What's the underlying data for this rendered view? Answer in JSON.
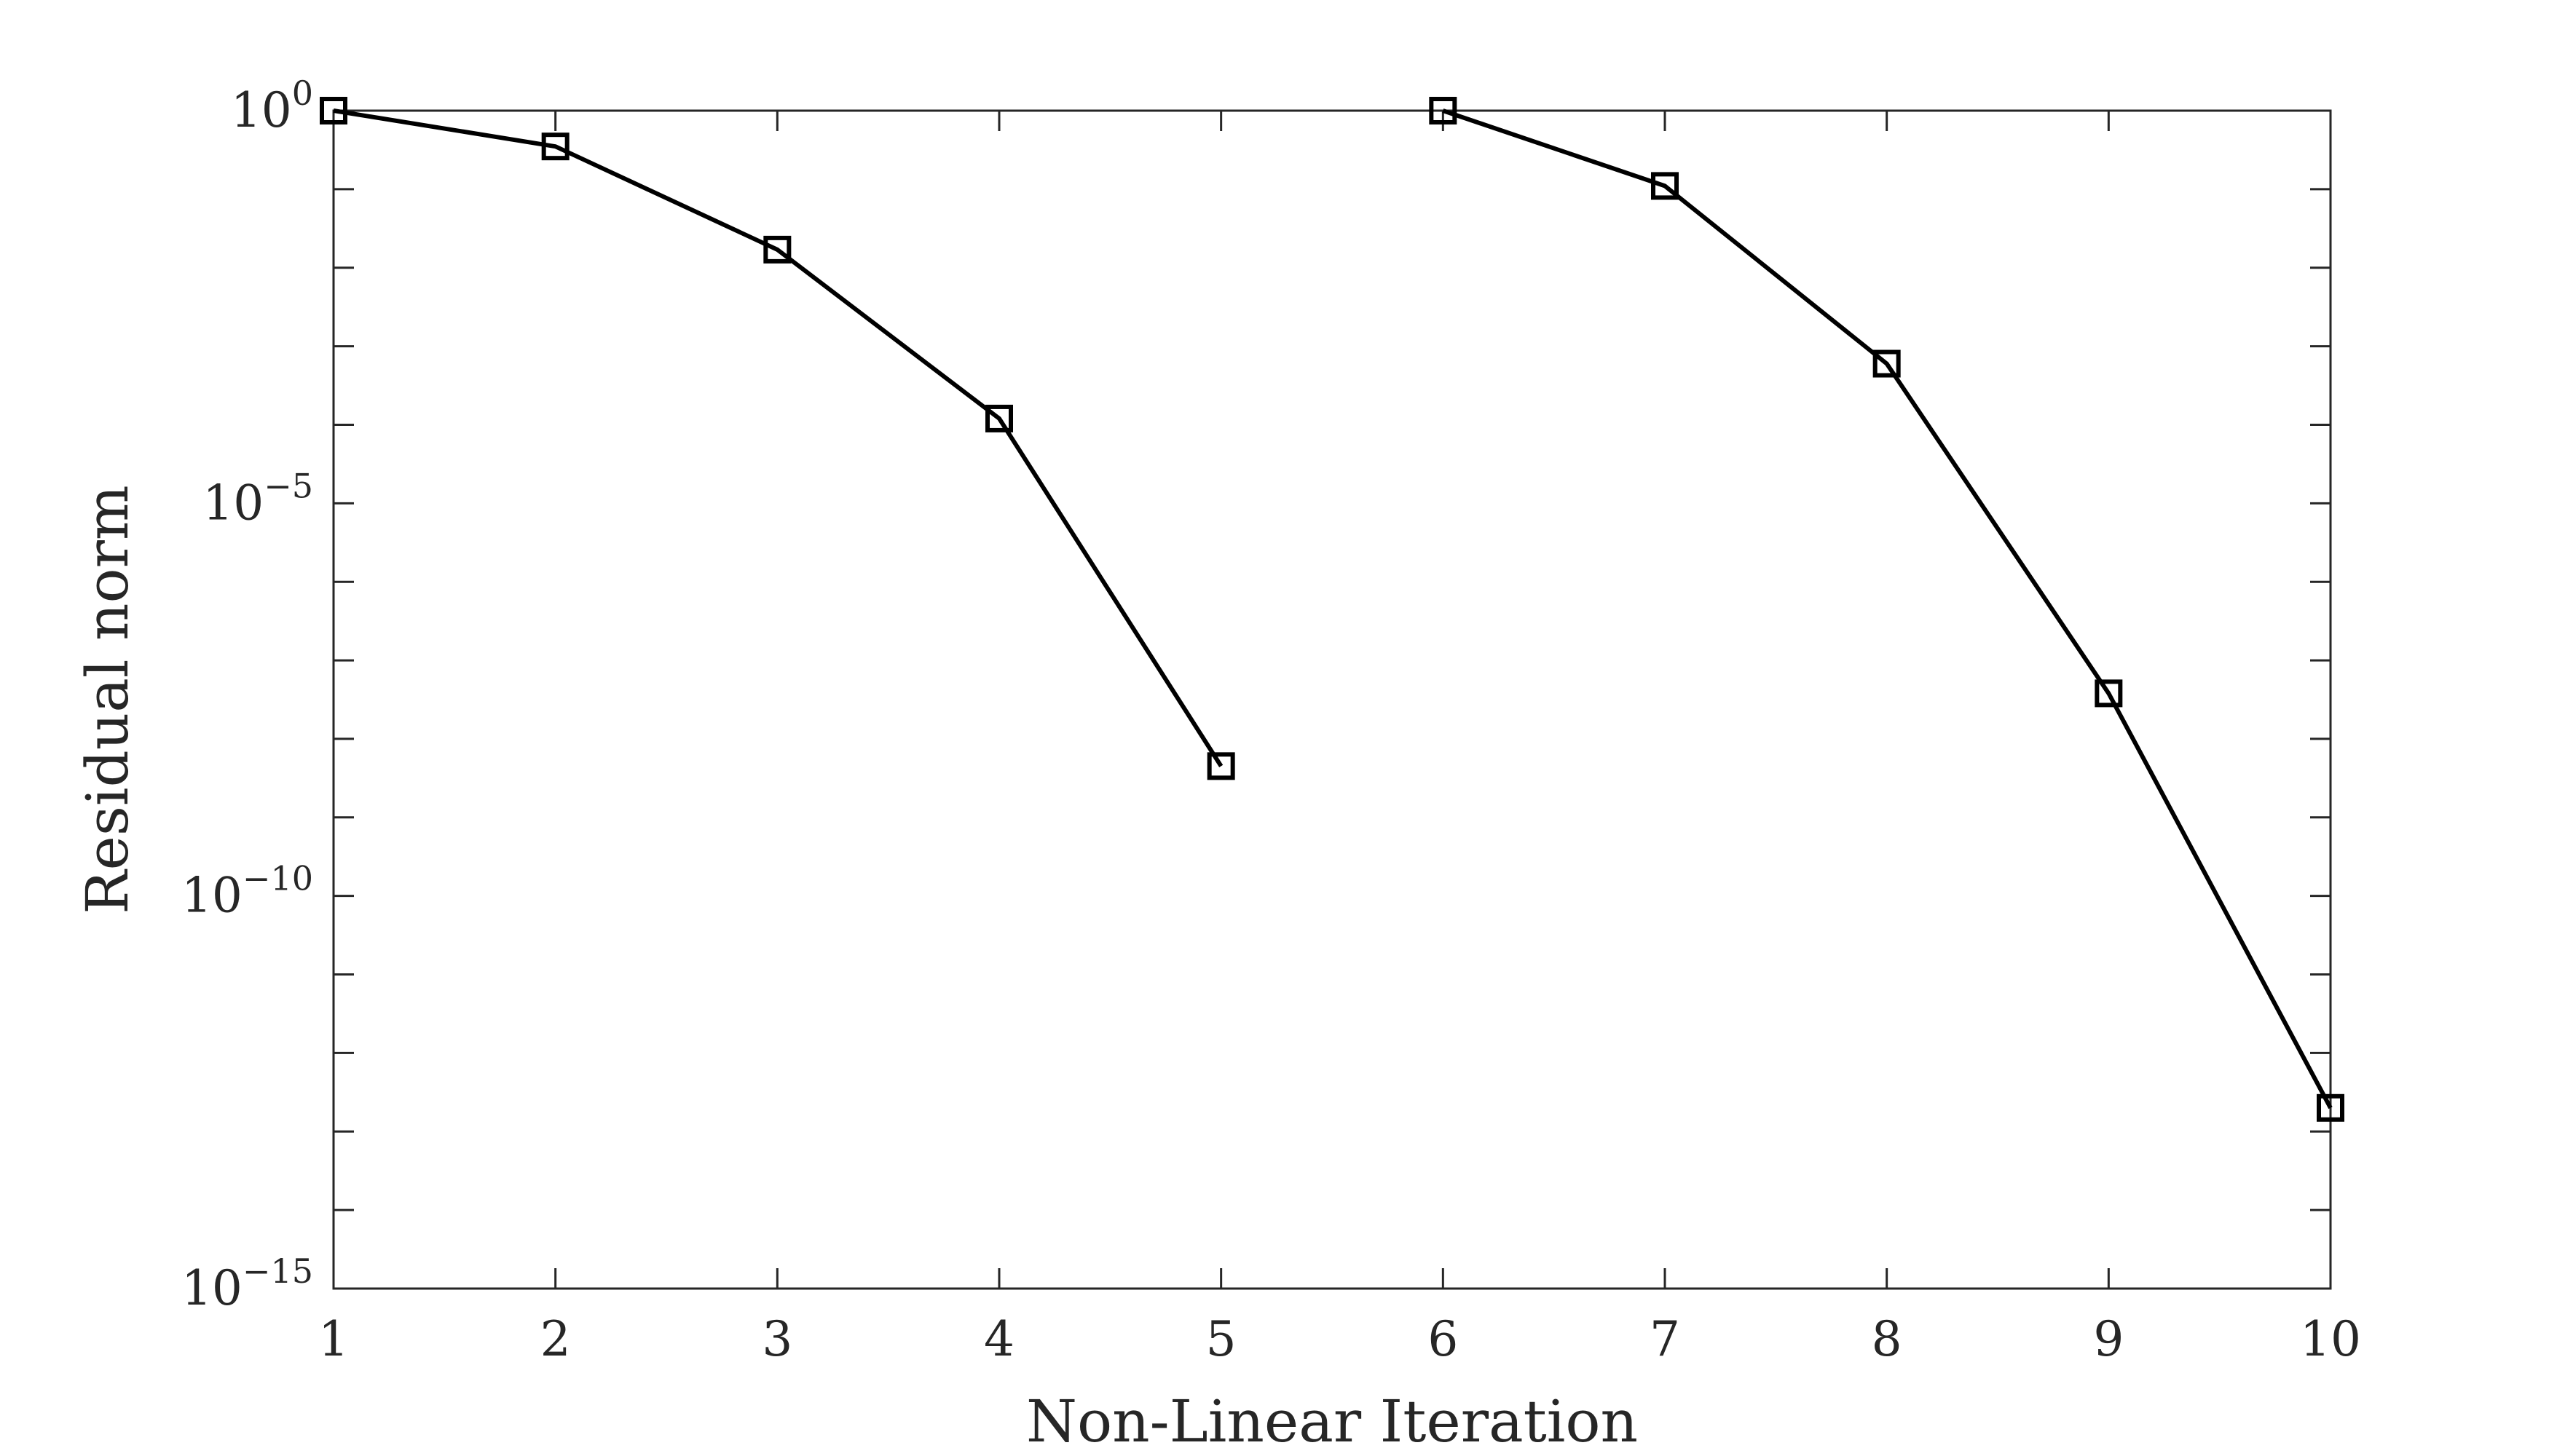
{
  "chart_data": {
    "type": "line",
    "title": "",
    "xlabel": "Non-Linear Iteration",
    "ylabel": "Residual norm",
    "xlim": [
      1,
      10
    ],
    "ylim": [
      1e-15,
      1
    ],
    "y_scale": "log",
    "grid": false,
    "legend": "none",
    "marker": "square",
    "line_color": "#000000",
    "x_ticks": [
      {
        "value": 1,
        "label": "1"
      },
      {
        "value": 2,
        "label": "2"
      },
      {
        "value": 3,
        "label": "3"
      },
      {
        "value": 4,
        "label": "4"
      },
      {
        "value": 5,
        "label": "5"
      },
      {
        "value": 6,
        "label": "6"
      },
      {
        "value": 7,
        "label": "7"
      },
      {
        "value": 8,
        "label": "8"
      },
      {
        "value": 9,
        "label": "9"
      },
      {
        "value": 10,
        "label": "10"
      }
    ],
    "y_ticks": [
      {
        "value": 1,
        "base": "10",
        "exp": "0"
      },
      {
        "value": 1e-05,
        "base": "10",
        "exp": "−5"
      },
      {
        "value": 1e-10,
        "base": "10",
        "exp": "−10"
      },
      {
        "value": 1e-15,
        "base": "10",
        "exp": "−15"
      }
    ],
    "series": [
      {
        "x": [
          1,
          2,
          3,
          4,
          5
        ],
        "y": [
          1,
          0.35,
          0.017,
          0.00012,
          4.5e-09
        ]
      },
      {
        "x": [
          6,
          7,
          8,
          9,
          10
        ],
        "y": [
          1,
          0.11,
          0.0006,
          3.8e-08,
          2e-13
        ]
      }
    ]
  }
}
